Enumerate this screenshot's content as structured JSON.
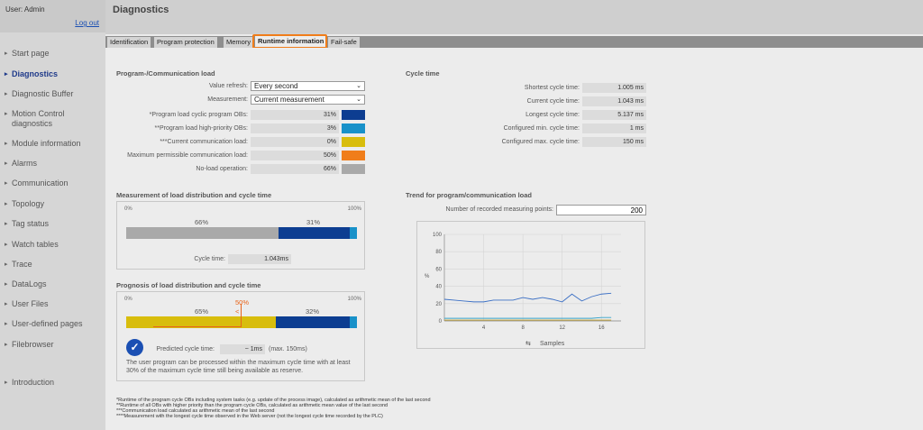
{
  "user": {
    "label": "User: Admin",
    "logout": "Log out"
  },
  "nav": [
    {
      "label": "Start page",
      "active": false
    },
    {
      "label": "Diagnostics",
      "active": true
    },
    {
      "label": "Diagnostic Buffer",
      "active": false
    },
    {
      "label": "Motion Control\ndiagnostics",
      "active": false
    },
    {
      "label": "Module information",
      "active": false
    },
    {
      "label": "Alarms",
      "active": false
    },
    {
      "label": "Communication",
      "active": false
    },
    {
      "label": "Topology",
      "active": false
    },
    {
      "label": "Tag status",
      "active": false
    },
    {
      "label": "Watch tables",
      "active": false
    },
    {
      "label": "Trace",
      "active": false
    },
    {
      "label": "DataLogs",
      "active": false
    },
    {
      "label": "User Files",
      "active": false
    },
    {
      "label": "User-defined pages",
      "active": false
    },
    {
      "label": "Filebrowser",
      "active": false
    },
    {
      "label": "Introduction",
      "active": false
    }
  ],
  "page": {
    "title": "Diagnostics"
  },
  "tabs": [
    "Identification",
    "Program protection",
    "Memory",
    "Runtime information",
    "Fail-safe"
  ],
  "active_tab": "Runtime information",
  "load": {
    "title": "Program-/Communication load",
    "value_refresh_label": "Value refresh:",
    "value_refresh_value": "Every second",
    "measurement_label": "Measurement:",
    "measurement_value": "Current measurement",
    "rows": [
      {
        "label": "*Program load cyclic program OBs:",
        "value": "31%",
        "color": "#0d3d91"
      },
      {
        "label": "**Program load high-priority OBs:",
        "value": "3%",
        "color": "#1891c9"
      },
      {
        "label": "***Current communication load:",
        "value": "0%",
        "color": "#d8bd0d"
      },
      {
        "label": "Maximum permissible communication load:",
        "value": "50%",
        "color": "#f07d1a"
      },
      {
        "label": "No-load operation:",
        "value": "66%",
        "color": "#a9a9a9"
      }
    ]
  },
  "cycle": {
    "title": "Cycle time",
    "rows": [
      {
        "label": "Shortest cycle time:",
        "value": "1.005 ms"
      },
      {
        "label": "Current cycle time:",
        "value": "1.043 ms"
      },
      {
        "label": "Longest cycle time:",
        "value": "5.137 ms"
      },
      {
        "label": "Configured min. cycle time:",
        "value": "1 ms"
      },
      {
        "label": "Configured max. cycle time:",
        "value": "150 ms"
      }
    ]
  },
  "distribution": {
    "title": "Measurement of load distribution and cycle time",
    "scale_min": "0%",
    "scale_max": "100%",
    "idle_label": "66%",
    "cyclic_label": "31%",
    "idle_pct": 66,
    "cyclic_pct": 31,
    "high_pct": 3,
    "cycle_label": "Cycle time:",
    "cycle_value": "1.043ms"
  },
  "prognosis": {
    "title": "Prognosis of load distribution and cycle time",
    "scale_min": "0%",
    "scale_max": "100%",
    "comm_label": "65%",
    "cyclic_label": "32%",
    "max_comm_label": "50%",
    "comm_pct": 65,
    "cyclic_pct": 32,
    "high_pct": 3,
    "max_comm_pct": 50,
    "predicted_label": "Predicted cycle time:",
    "predicted_value": "~ 1ms",
    "predicted_max": "(max. 150ms)",
    "message": "The user program can be processed within the maximum cycle time with at least 30% of the maximum cycle time still being available as reserve."
  },
  "trend": {
    "title": "Trend for program/communication load",
    "points_label": "Number of recorded measuring points:",
    "points_value": "200",
    "x_label": "Samples",
    "y_label": "%"
  },
  "chart_data": {
    "type": "line",
    "ylabel": "%",
    "xlabel": "Samples",
    "ylim": [
      0,
      100
    ],
    "xlim": [
      0,
      18
    ],
    "yticks": [
      0,
      20,
      40,
      60,
      80,
      100
    ],
    "xticks": [
      4,
      8,
      12,
      16
    ],
    "series": [
      {
        "color": "#3b6fc4",
        "x": [
          0,
          1,
          2,
          3,
          4,
          5,
          6,
          7,
          8,
          9,
          10,
          11,
          12,
          13,
          14,
          15,
          16,
          17
        ],
        "values": [
          25,
          24,
          23,
          22,
          22,
          24,
          24,
          24,
          27,
          25,
          27,
          25,
          22,
          31,
          23,
          28,
          31,
          32
        ]
      },
      {
        "color": "#c4a12a",
        "x": [
          0,
          1,
          2,
          3,
          4,
          5,
          6,
          7,
          8,
          9,
          10,
          11,
          12,
          13,
          14,
          15,
          16,
          17
        ],
        "values": [
          1,
          1,
          1,
          1,
          1,
          1,
          1,
          1,
          1,
          1,
          1,
          1,
          1,
          1,
          1,
          1,
          1,
          1
        ]
      },
      {
        "color": "#35a3c9",
        "x": [
          0,
          1,
          2,
          3,
          4,
          5,
          6,
          7,
          8,
          9,
          10,
          11,
          12,
          13,
          14,
          15,
          16,
          17
        ],
        "values": [
          3,
          3,
          3,
          3,
          3,
          3,
          3,
          3,
          3,
          3,
          3,
          3,
          3,
          3,
          3,
          3,
          4,
          4
        ]
      }
    ]
  },
  "footnotes": [
    "*Runtime of the program cycle OBs including system tasks (e.g. update of the process image), calculated as arithmetic mean of the last second",
    "**Runtime of all OBs with higher priority than the program cycle OBs, calculated as arithmetic mean value of the last second",
    "***Communication load calculated as arithmetic mean of the last second",
    "****Measurement with the longest cycle time observed in the Web server (not the longest cycle time recorded by the PLC)"
  ]
}
